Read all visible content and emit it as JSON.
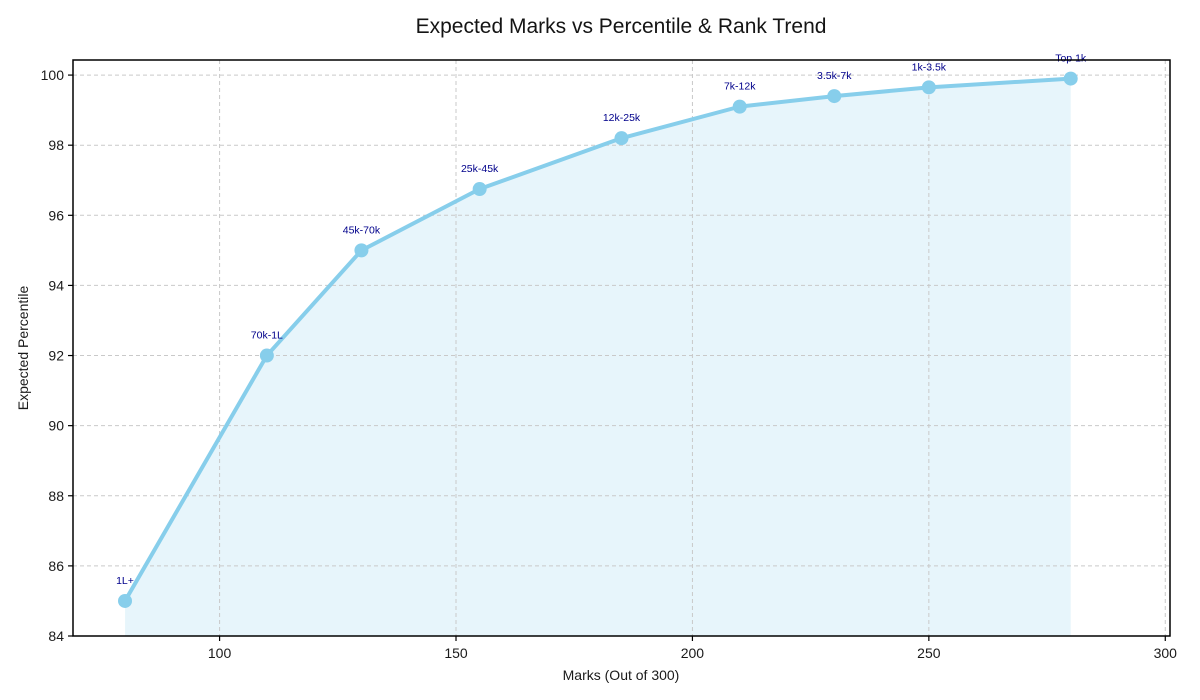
{
  "chart_data": {
    "type": "line",
    "title": "Expected Marks vs Percentile & Rank Trend",
    "xlabel": "Marks (Out of 300)",
    "ylabel": "Expected Percentile",
    "x": [
      80,
      110,
      130,
      155,
      185,
      210,
      230,
      250,
      280
    ],
    "y": [
      85,
      92,
      95,
      96.75,
      98.2,
      99.1,
      99.4,
      99.65,
      99.9
    ],
    "point_labels": [
      "1L+",
      "70k-1L",
      "45k-70k",
      "25k-45k",
      "12k-25k",
      "7k-12k",
      "3.5k-7k",
      "1k-3.5k",
      "Top 1k"
    ],
    "xticks": [
      100,
      150,
      200,
      250,
      300
    ],
    "yticks": [
      84,
      86,
      88,
      90,
      92,
      94,
      96,
      98,
      100
    ],
    "xlim": [
      69,
      301
    ],
    "ylim": [
      84,
      100.43
    ],
    "grid": true,
    "legend": "none",
    "area_fill": true,
    "colors": {
      "line": "#87CEEB",
      "marker": "#87CEEB",
      "fill": "rgba(135,206,235,0.2)",
      "annotation": "#00008B",
      "grid": "#c9c9c9",
      "axis": "#000000",
      "text": "#1a1a1a",
      "background": "#ffffff"
    }
  }
}
